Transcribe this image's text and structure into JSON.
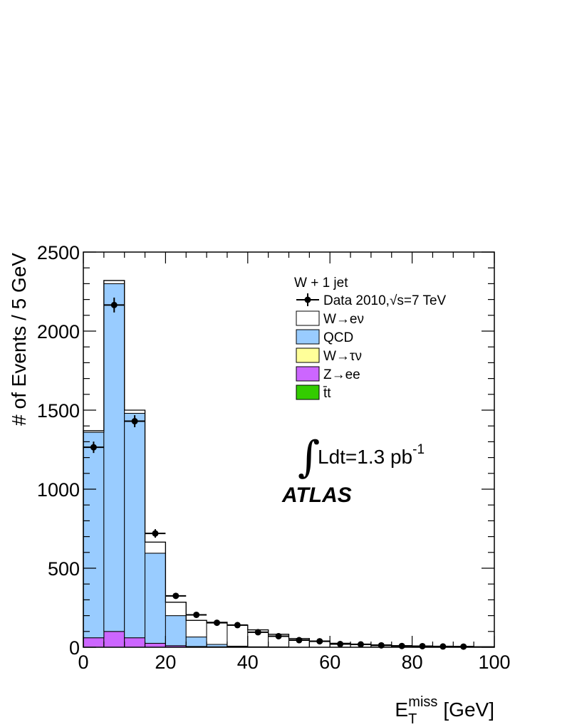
{
  "chart_data": {
    "type": "histogram",
    "xlabel": "E_T^miss [GeV]",
    "xlabel_main": "E",
    "xlabel_sub": "T",
    "xlabel_sup": "miss",
    "xlabel_unit": "[GeV]",
    "ylabel": "# of Events / 5 GeV",
    "xlim": [
      0,
      100
    ],
    "ylim": [
      0,
      2500
    ],
    "x_ticks": [
      0,
      20,
      40,
      60,
      80,
      100
    ],
    "y_ticks": [
      0,
      500,
      1000,
      1500,
      2000,
      2500
    ],
    "bin_edges": [
      0,
      5,
      10,
      15,
      20,
      25,
      30,
      35,
      40,
      45,
      50,
      55,
      60,
      65,
      70,
      75,
      80,
      85,
      90,
      95,
      100
    ],
    "stack": [
      {
        "name": "t̄t",
        "color": "#33cc00",
        "values": [
          0,
          0,
          0,
          0,
          0,
          0,
          0,
          0,
          0,
          0,
          0,
          0,
          0,
          0,
          0,
          0,
          0,
          0,
          0,
          0
        ]
      },
      {
        "name": "Z→ee",
        "color": "#cc66ff",
        "values": [
          60,
          100,
          60,
          25,
          10,
          5,
          3,
          2,
          1,
          1,
          0,
          0,
          0,
          0,
          0,
          0,
          0,
          0,
          0,
          0
        ]
      },
      {
        "name": "W→τν",
        "color": "#ffff99",
        "values": [
          0,
          0,
          0,
          0,
          0,
          0,
          0,
          0,
          0,
          0,
          0,
          0,
          0,
          0,
          0,
          0,
          0,
          0,
          0,
          0
        ]
      },
      {
        "name": "QCD",
        "color": "#99ccff",
        "values": [
          1300,
          2200,
          1420,
          570,
          190,
          60,
          15,
          5,
          2,
          1,
          0,
          0,
          0,
          0,
          0,
          0,
          0,
          0,
          0,
          0
        ]
      },
      {
        "name": "W→eν",
        "color": "#ffffff",
        "values": [
          10,
          20,
          20,
          70,
          85,
          105,
          140,
          133,
          107,
          80,
          55,
          40,
          25,
          20,
          15,
          10,
          8,
          6,
          5,
          3
        ]
      }
    ],
    "data_points": {
      "name": "Data 2010,√s=7 TeV",
      "x": [
        2.5,
        7.5,
        12.5,
        17.5,
        22.5,
        27.5,
        32.5,
        37.5,
        42.5,
        47.5,
        52.5,
        57.5,
        62.5,
        67.5,
        72.5,
        77.5,
        82.5,
        87.5,
        92.5
      ],
      "y": [
        1265,
        2165,
        1430,
        720,
        325,
        205,
        155,
        140,
        95,
        70,
        45,
        38,
        20,
        18,
        12,
        8,
        7,
        5,
        4
      ],
      "yerr": [
        36,
        47,
        38,
        27,
        18,
        14,
        12,
        12,
        10,
        8,
        7,
        6,
        4,
        4,
        3,
        3,
        3,
        2,
        2
      ]
    },
    "legend": {
      "header": "W + 1 jet",
      "entries": [
        {
          "label": "Data 2010,√s=7 TeV",
          "style": "marker"
        },
        {
          "label": "W→eν",
          "style": "fill",
          "color": "#ffffff"
        },
        {
          "label": "QCD",
          "style": "fill",
          "color": "#99ccff"
        },
        {
          "label": "W→τν",
          "style": "fill",
          "color": "#ffff99"
        },
        {
          "label": "Z→ee",
          "style": "fill",
          "color": "#cc66ff"
        },
        {
          "label": "t̄t",
          "style": "fill",
          "color": "#33cc00"
        }
      ],
      "placement": "top-right"
    },
    "annotations": {
      "lumi": "Ldt=1.3 pb",
      "lumi_integral": "∫",
      "lumi_exp": "-1",
      "experiment": "ATLAS"
    }
  }
}
